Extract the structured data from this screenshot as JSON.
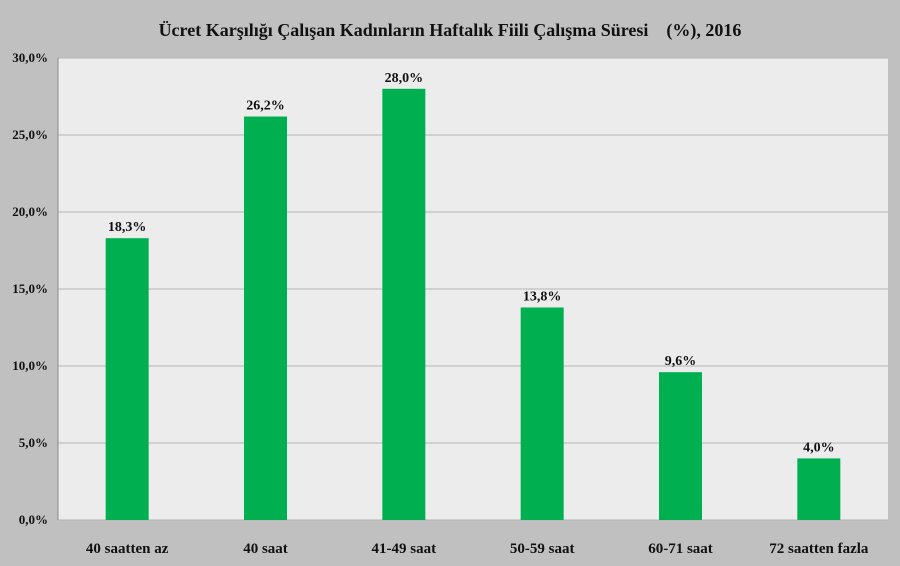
{
  "chart_data": {
    "type": "bar",
    "title": "Ücret Karşılığı Çalışan Kadınların Haftalık Fiili Çalışma Süresi    (%), 2016",
    "xlabel": "",
    "ylabel": "",
    "categories": [
      "40 saatten az",
      "40 saat",
      "41-49 saat",
      "50-59 saat",
      "60-71 saat",
      "72 saatten fazla"
    ],
    "values": [
      18.3,
      26.2,
      28.0,
      13.8,
      9.6,
      4.0
    ],
    "data_labels": [
      "18,3%",
      "26,2%",
      "28,0%",
      "13,8%",
      "9,6%",
      "4,0%"
    ],
    "ylim": [
      0,
      30
    ],
    "yticks": [
      0,
      5,
      10,
      15,
      20,
      25,
      30
    ],
    "ytick_labels": [
      "0,0%",
      "5,0%",
      "10,0%",
      "15,0%",
      "20,0%",
      "25,0%",
      "30,0%"
    ],
    "grid": true,
    "legend": "none",
    "colors": {
      "bar": "#00b050",
      "plot_background": "#ececec",
      "page_background": "#c0c0c0",
      "grid": "#b4b4b4"
    }
  }
}
